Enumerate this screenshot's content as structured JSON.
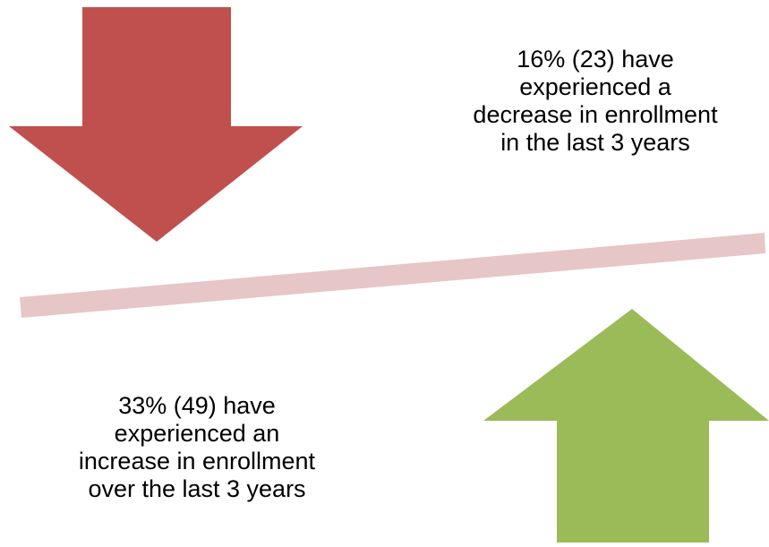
{
  "decrease": {
    "color": "#C0504D",
    "arrow_icon": "down-arrow-icon",
    "lines": [
      "16% (23) have",
      "experienced a",
      "decrease in enrollment",
      "in the last 3 years"
    ]
  },
  "increase": {
    "color": "#9BBB59",
    "arrow_icon": "up-arrow-icon",
    "lines": [
      "33% (49) have",
      "experienced an",
      "increase in enrollment",
      "over the last 3 years"
    ]
  },
  "balance_bar": {
    "color": "#E6C6C6"
  }
}
